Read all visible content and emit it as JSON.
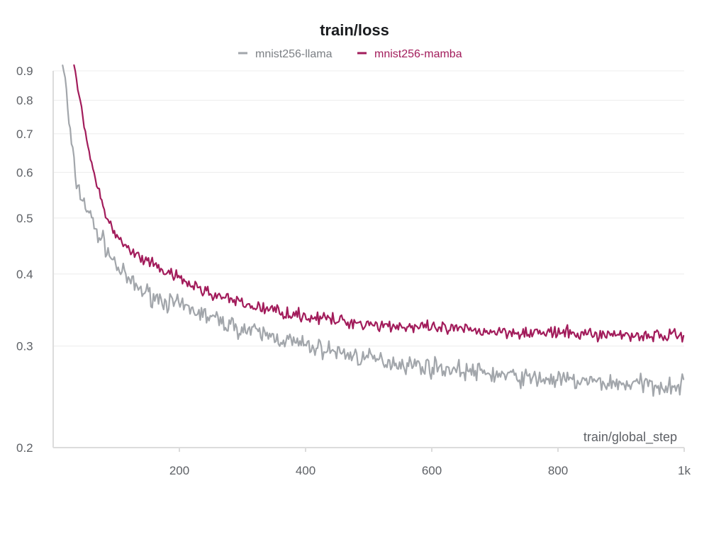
{
  "chart_data": {
    "type": "line",
    "title": "train/loss",
    "xlabel": "train/global_step",
    "ylabel": "",
    "yscale": "log",
    "xlim": [
      0,
      1000
    ],
    "ylim": [
      0.2,
      0.9
    ],
    "xticks": [
      200,
      400,
      600,
      800,
      1000
    ],
    "xtick_labels": [
      "200",
      "400",
      "600",
      "800",
      "1k"
    ],
    "yticks": [
      0.2,
      0.3,
      0.4,
      0.5,
      0.6,
      0.7,
      0.8,
      0.9
    ],
    "ytick_labels": [
      "0.2",
      "0.3",
      "0.4",
      "0.5",
      "0.6",
      "0.7",
      "0.8",
      "0.9"
    ],
    "grid": true,
    "legend_position": "top-center",
    "series": [
      {
        "name": "mnist256-llama",
        "color": "#a2a6ab",
        "x": [
          15,
          20,
          25,
          30,
          35,
          40,
          50,
          60,
          70,
          80,
          90,
          100,
          110,
          125,
          140,
          150,
          175,
          200,
          225,
          250,
          275,
          300,
          325,
          350,
          375,
          400,
          425,
          450,
          475,
          500,
          525,
          550,
          575,
          600,
          625,
          650,
          675,
          700,
          725,
          750,
          775,
          800,
          825,
          850,
          875,
          900,
          925,
          950,
          1000
        ],
        "values": [
          0.93,
          0.85,
          0.73,
          0.66,
          0.59,
          0.56,
          0.53,
          0.5,
          0.47,
          0.455,
          0.43,
          0.415,
          0.4,
          0.385,
          0.375,
          0.37,
          0.36,
          0.352,
          0.345,
          0.336,
          0.328,
          0.321,
          0.316,
          0.311,
          0.306,
          0.3,
          0.297,
          0.293,
          0.289,
          0.285,
          0.283,
          0.28,
          0.278,
          0.276,
          0.274,
          0.272,
          0.27,
          0.268,
          0.266,
          0.264,
          0.263,
          0.262,
          0.261,
          0.26,
          0.259,
          0.258,
          0.258,
          0.257,
          0.256
        ]
      },
      {
        "name": "mnist256-mamba",
        "color": "#a21c5b",
        "x": [
          33,
          40,
          45,
          50,
          55,
          60,
          70,
          80,
          90,
          100,
          110,
          125,
          140,
          150,
          175,
          200,
          225,
          250,
          275,
          300,
          325,
          350,
          375,
          400,
          425,
          450,
          475,
          500,
          525,
          550,
          575,
          600,
          625,
          650,
          675,
          700,
          725,
          750,
          775,
          800,
          825,
          850,
          875,
          900,
          925,
          950,
          1000
        ],
        "values": [
          0.93,
          0.84,
          0.77,
          0.72,
          0.67,
          0.63,
          0.56,
          0.52,
          0.49,
          0.465,
          0.45,
          0.435,
          0.425,
          0.418,
          0.405,
          0.392,
          0.38,
          0.37,
          0.362,
          0.355,
          0.35,
          0.346,
          0.342,
          0.338,
          0.335,
          0.332,
          0.33,
          0.328,
          0.326,
          0.325,
          0.323,
          0.322,
          0.321,
          0.32,
          0.319,
          0.318,
          0.318,
          0.317,
          0.316,
          0.316,
          0.315,
          0.315,
          0.314,
          0.314,
          0.313,
          0.313,
          0.313
        ]
      }
    ]
  }
}
